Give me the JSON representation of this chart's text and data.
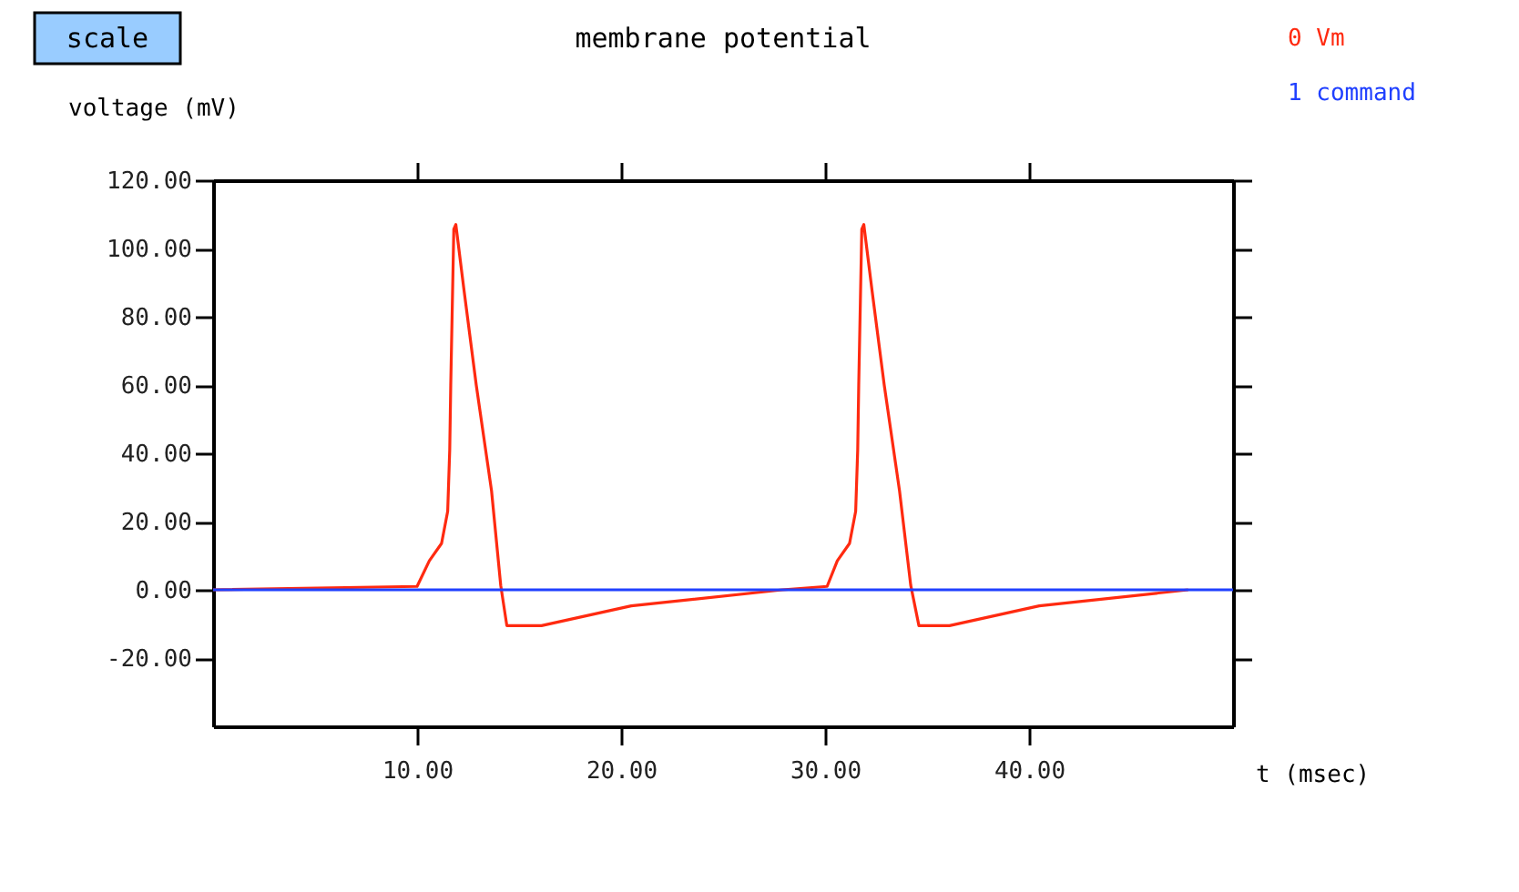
{
  "chart_data": {
    "type": "line",
    "title": "membrane potential",
    "ylabel": "voltage (mV)",
    "xlabel": "t (msec)",
    "annotations": [
      "scale"
    ],
    "series": [
      {
        "name": "0 Vm",
        "color": "#ff2a10",
        "x": [
          0,
          10,
          10.6,
          11.2,
          11.5,
          11.6,
          11.65,
          11.8,
          11.9,
          12.3,
          12.9,
          13.65,
          14.1,
          14.4,
          16.1,
          20.5,
          27.9,
          30.1,
          30.6,
          31.2,
          31.5,
          31.6,
          31.65,
          31.8,
          31.9,
          32.3,
          32.9,
          33.65,
          34.2,
          34.6,
          36.1,
          40.5,
          47.8
        ],
        "values": [
          0,
          1,
          8.5,
          13.6,
          23,
          41,
          60,
          105.6,
          107,
          87.8,
          60,
          29,
          1.3,
          -10.5,
          -10.5,
          -4.7,
          0,
          1,
          8.5,
          13.6,
          23,
          41,
          60,
          105.6,
          107,
          87.8,
          60,
          29,
          1.3,
          -10.5,
          -10.5,
          -4.7,
          0
        ]
      },
      {
        "name": "1 command",
        "color": "#2040ff",
        "x": [
          0,
          50
        ],
        "values": [
          0,
          0
        ]
      }
    ],
    "xlim": [
      0,
      50
    ],
    "ylim": [
      -40,
      120
    ],
    "xticks": [
      {
        "value": 10,
        "label": "10.00"
      },
      {
        "value": 20,
        "label": "20.00"
      },
      {
        "value": 30,
        "label": "30.00"
      },
      {
        "value": 40,
        "label": "40.00"
      }
    ],
    "yticks": [
      {
        "value": -20,
        "label": "-20.00"
      },
      {
        "value": 0,
        "label": "0.00"
      },
      {
        "value": 20,
        "label": "20.00"
      },
      {
        "value": 40,
        "label": "40.00"
      },
      {
        "value": 60,
        "label": "60.00"
      },
      {
        "value": 80,
        "label": "80.00"
      },
      {
        "value": 100,
        "label": "100.00"
      },
      {
        "value": 120,
        "label": "120.00"
      }
    ],
    "grid": false,
    "legend": "top right",
    "line_style": "solid",
    "marker": "none"
  }
}
